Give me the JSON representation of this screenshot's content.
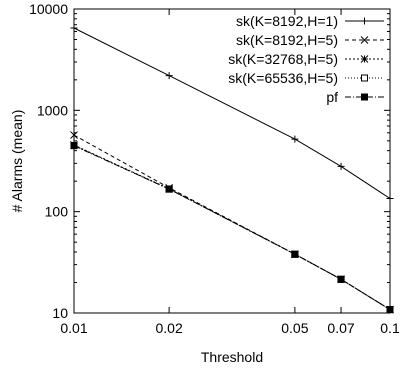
{
  "chart_data": {
    "type": "line",
    "title": "",
    "xlabel": "Threshold",
    "ylabel": "# Alarms (mean)",
    "x_scale": "log",
    "y_scale": "log",
    "xlim": [
      0.01,
      0.1
    ],
    "ylim": [
      10,
      10000
    ],
    "x_ticks": [
      0.01,
      0.02,
      0.05,
      0.07,
      0.1
    ],
    "x_tick_labels": [
      "0.01",
      "0.02",
      "0.05",
      "0.07",
      "0.1"
    ],
    "y_ticks": [
      10,
      100,
      1000,
      10000
    ],
    "y_tick_labels": [
      "10",
      "100",
      "1000",
      "10000"
    ],
    "grid": false,
    "legend_position": "top-right",
    "x": [
      0.01,
      0.02,
      0.05,
      0.07,
      0.1
    ],
    "series": [
      {
        "name": "sk(K=8192,H=1)",
        "values": [
          6500,
          2200,
          520,
          280,
          135
        ],
        "marker": "plus",
        "dash": "solid"
      },
      {
        "name": "sk(K=8192,H=5)",
        "values": [
          570,
          172,
          38,
          21.5,
          10.8
        ],
        "marker": "x",
        "dash": "dashed"
      },
      {
        "name": "sk(K=32768,H=5)",
        "values": [
          455,
          168,
          38,
          21.5,
          10.8
        ],
        "marker": "star",
        "dash": "dotted"
      },
      {
        "name": "sk(K=65536,H=5)",
        "values": [
          450,
          167,
          38,
          21.5,
          10.8
        ],
        "marker": "square",
        "dash": "dotted-fine"
      },
      {
        "name": "pf",
        "values": [
          448,
          167,
          38,
          21.5,
          10.8
        ],
        "marker": "filled-square",
        "dash": "dash-dot"
      }
    ]
  }
}
